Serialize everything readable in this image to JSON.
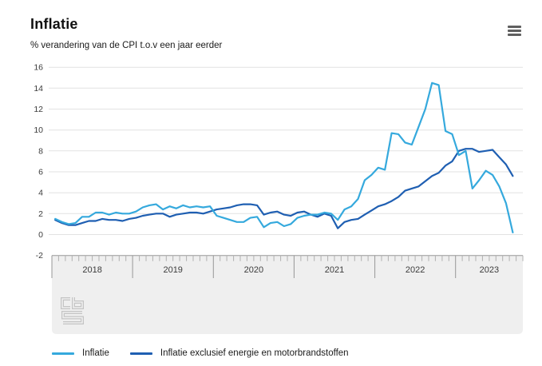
{
  "header": {
    "title": "Inflatie",
    "subtitle": "% verandering van de CPI t.o.v een jaar eerder"
  },
  "colors": {
    "inflatie_line": "#35a9dd",
    "kern_line": "#1f5fb2",
    "grid": "#e2e2e2",
    "axis_panel": "#efefef",
    "axis_border": "#979797",
    "tick": "#b0b0b0",
    "axis_text": "#3c3c3c",
    "logo": "#c4c4c4"
  },
  "icons": {
    "menu": "hamburger-menu-icon",
    "logo": "cbs-logo"
  },
  "chart_data": {
    "type": "line",
    "title": "Inflatie",
    "subtitle": "% verandering van de CPI t.o.v een jaar eerder",
    "x_unit": "month",
    "x_start": "2018-01",
    "x_end": "2023-09",
    "years": [
      "2018",
      "2019",
      "2020",
      "2021",
      "2022",
      "2023"
    ],
    "ylim": [
      -2,
      16
    ],
    "yticks": [
      16,
      14,
      12,
      10,
      8,
      6,
      4,
      2,
      0,
      -2
    ],
    "grid": true,
    "legend_position": "bottom",
    "series": [
      {
        "name": "Inflatie",
        "color": "#35a9dd",
        "values": [
          1.5,
          1.2,
          1.0,
          1.1,
          1.7,
          1.7,
          2.1,
          2.1,
          1.9,
          2.1,
          2.0,
          2.0,
          2.2,
          2.6,
          2.8,
          2.9,
          2.4,
          2.7,
          2.5,
          2.8,
          2.6,
          2.7,
          2.6,
          2.7,
          1.8,
          1.6,
          1.4,
          1.2,
          1.2,
          1.6,
          1.7,
          0.7,
          1.1,
          1.2,
          0.8,
          1.0,
          1.6,
          1.8,
          1.9,
          1.9,
          2.1,
          2.0,
          1.4,
          2.4,
          2.7,
          3.4,
          5.2,
          5.7,
          6.4,
          6.2,
          9.7,
          9.6,
          8.8,
          8.6,
          10.3,
          12.0,
          14.5,
          14.3,
          9.9,
          9.6,
          7.6,
          8.0,
          4.4,
          5.2,
          6.1,
          5.7,
          4.6,
          3.0,
          0.2
        ]
      },
      {
        "name": "Inflatie exclusief energie en motorbrandstoffen",
        "color": "#1f5fb2",
        "values": [
          1.4,
          1.1,
          0.9,
          0.9,
          1.1,
          1.3,
          1.3,
          1.5,
          1.4,
          1.4,
          1.3,
          1.5,
          1.6,
          1.8,
          1.9,
          2.0,
          2.0,
          1.7,
          1.9,
          2.0,
          2.1,
          2.1,
          2.0,
          2.2,
          2.4,
          2.5,
          2.6,
          2.8,
          2.9,
          2.9,
          2.8,
          1.9,
          2.1,
          2.2,
          1.9,
          1.8,
          2.1,
          2.2,
          1.9,
          1.7,
          2.0,
          1.8,
          0.6,
          1.2,
          1.4,
          1.5,
          1.9,
          2.3,
          2.7,
          2.9,
          3.2,
          3.6,
          4.2,
          4.4,
          4.6,
          5.1,
          5.6,
          5.9,
          6.6,
          7.0,
          8.0,
          8.2,
          8.2,
          7.9,
          8.0,
          8.1,
          7.4,
          6.7,
          5.6
        ]
      }
    ]
  }
}
